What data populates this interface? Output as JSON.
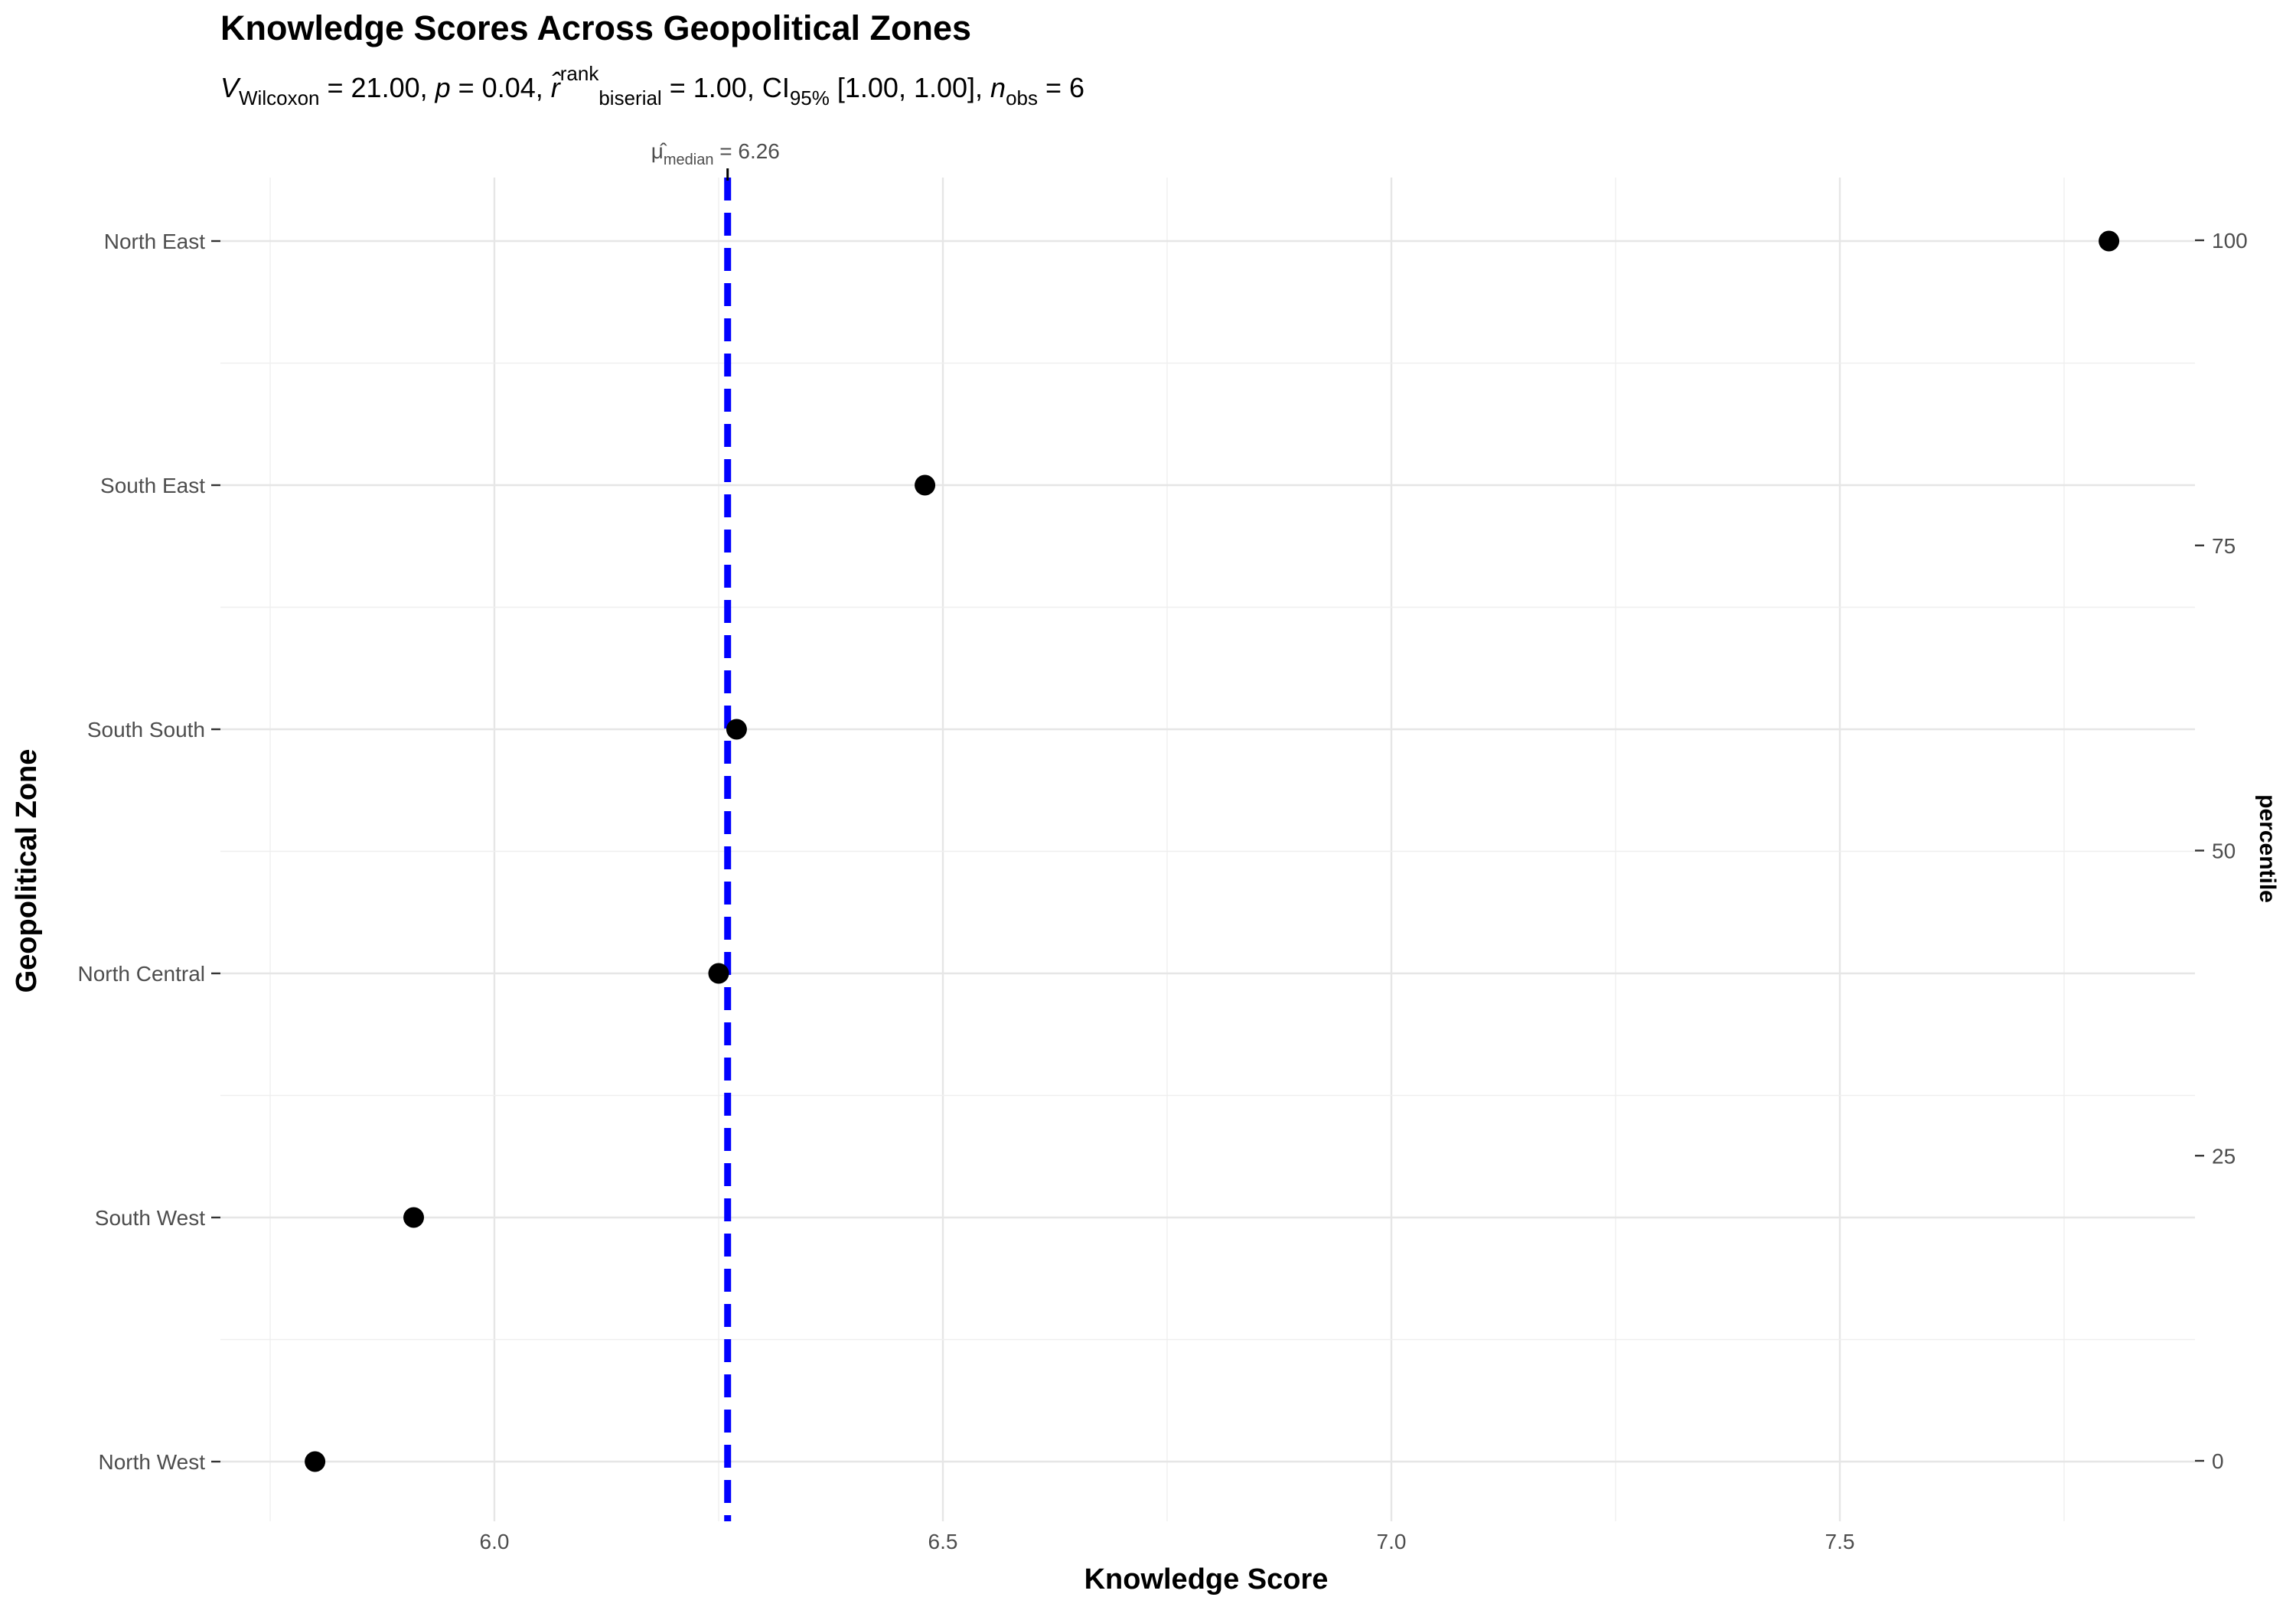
{
  "chart_data": {
    "type": "scatter",
    "title": "Knowledge Scores Across Geopolitical Zones",
    "subtitle": {
      "v_symbol": "V",
      "v_sub": "Wilcoxon",
      "v_value": " = 21.00, ",
      "p_symbol": "p",
      "p_value": " = 0.04, ",
      "r_symbol": "r̂",
      "r_sup": "rank",
      "r_sub": "biserial",
      "r_value": " = 1.00, CI",
      "ci_sub": "95%",
      "ci_value": " [1.00, 1.00], ",
      "n_symbol": "n",
      "n_sub": "obs",
      "n_value": " = 6"
    },
    "xlabel": "Knowledge Score",
    "ylabel": "Geopolitical Zone",
    "y2label": "percentile",
    "xlim": [
      5.72,
      7.87
    ],
    "x_ticks": [
      6.0,
      6.5,
      7.0,
      7.5
    ],
    "x_tick_labels": [
      "6.0",
      "6.5",
      "7.0",
      "7.5"
    ],
    "categories": [
      "North West",
      "South West",
      "North Central",
      "South South",
      "South East",
      "North East"
    ],
    "values": [
      5.8,
      5.91,
      6.25,
      6.27,
      6.48,
      7.8
    ],
    "percentile_ticks": [
      0,
      25,
      50,
      75,
      100
    ],
    "percentile_tick_labels": [
      "0",
      "25",
      "50",
      "75",
      "100"
    ],
    "median": {
      "value": 6.26,
      "symbol": "μ̂",
      "sub": "median",
      "label_value": " = 6.26",
      "line_color": "#0000ff"
    },
    "point_color": "#000000",
    "grid": true
  }
}
